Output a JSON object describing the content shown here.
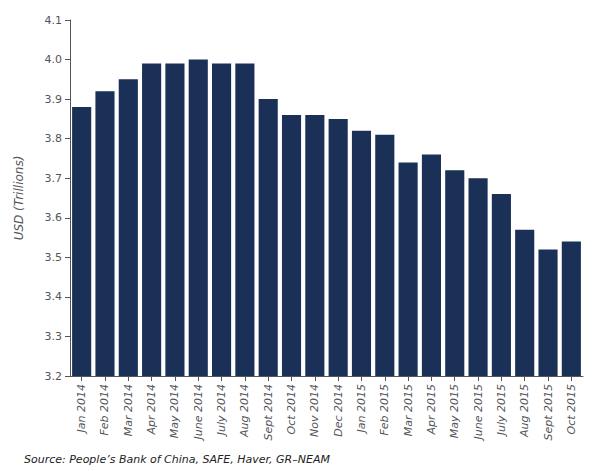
{
  "chart_data": {
    "type": "bar",
    "categories": [
      "Jan 2014",
      "Feb 2014",
      "Mar 2014",
      "Apr 2014",
      "May 2014",
      "June 2014",
      "July 2014",
      "Aug 2014",
      "Sept 2014",
      "Oct 2014",
      "Nov 2014",
      "Dec 2014",
      "Jan 2015",
      "Feb 2015",
      "Mar 2015",
      "Apr 2015",
      "May 2015",
      "June 2015",
      "July 2015",
      "Aug 2015",
      "Sept 2015",
      "Oct 2015"
    ],
    "values": [
      3.88,
      3.92,
      3.95,
      3.99,
      3.99,
      4.0,
      3.99,
      3.99,
      3.9,
      3.86,
      3.86,
      3.85,
      3.82,
      3.81,
      3.74,
      3.76,
      3.72,
      3.7,
      3.66,
      3.57,
      3.52,
      3.54
    ],
    "color": "#1a3057",
    "ylabel": "USD (Trillions)",
    "ylim": [
      3.2,
      4.1
    ],
    "yticks": [
      3.2,
      3.3,
      3.4,
      3.5,
      3.6,
      3.7,
      3.8,
      3.9,
      {
        "value": 4,
        "label": "4.0"
      },
      4.1
    ],
    "annotations": [
      "Source: People’s Bank of China, SAFE, Haver, GR–NEAM"
    ],
    "grid": false
  }
}
